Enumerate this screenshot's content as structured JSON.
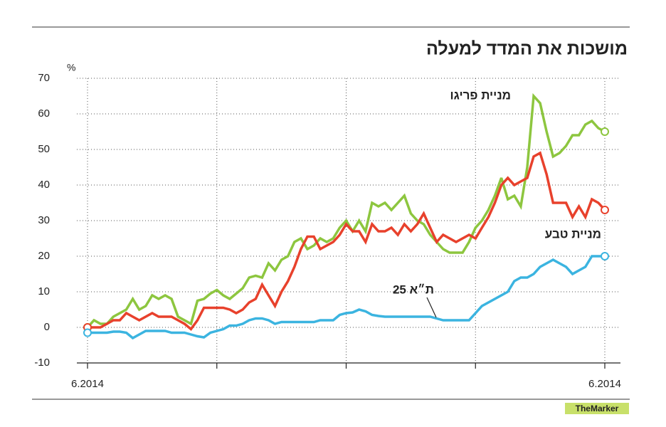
{
  "chart_data": {
    "type": "line",
    "title": "מושכות את המדד למעלה",
    "y_unit": "%",
    "logo": "TheMarker",
    "categories": [
      "6.2014",
      null,
      null,
      null,
      null,
      null,
      null,
      null,
      null,
      null,
      null,
      null,
      null,
      null,
      null,
      null,
      null,
      null,
      null,
      null,
      null,
      null,
      null,
      null,
      null,
      null,
      null,
      null,
      null,
      null,
      null,
      null,
      null,
      null,
      null,
      null,
      null,
      null,
      null,
      null,
      null,
      null,
      null,
      null,
      null,
      null,
      null,
      null,
      null,
      null,
      null,
      null,
      null,
      null,
      null,
      null,
      null,
      null,
      null,
      null,
      null,
      null,
      null,
      null,
      null,
      null,
      null,
      null,
      null,
      null,
      null,
      null,
      null,
      null,
      null,
      null,
      null,
      null,
      null,
      null,
      "6.2014"
    ],
    "series": [
      {
        "name": "מניית פריגו",
        "color": "#8dc63f",
        "values": [
          0,
          2,
          1,
          1,
          3,
          4,
          5,
          8,
          5,
          6,
          9,
          8,
          9,
          8,
          3,
          2,
          1,
          7.5,
          8,
          9.5,
          10.5,
          9,
          8,
          9.5,
          11,
          14,
          14.5,
          14,
          18,
          16,
          19,
          20,
          24,
          25,
          22,
          23,
          25,
          24,
          25,
          28,
          30,
          27,
          30,
          27,
          35,
          34,
          35,
          33,
          35,
          37,
          32,
          30,
          29,
          26,
          24,
          22,
          21,
          21,
          21,
          24,
          28,
          30,
          33,
          37,
          42,
          36,
          37,
          34,
          45,
          65,
          63,
          55,
          48,
          49,
          51,
          54,
          54,
          57,
          58,
          56,
          55
        ]
      },
      {
        "name": "מניית טבע",
        "color": "#e8412c",
        "values": [
          0,
          0,
          0,
          1,
          2,
          2,
          4,
          3,
          2,
          3,
          4,
          3,
          3,
          3,
          2,
          1,
          -0.5,
          2,
          5.5,
          5.5,
          5.5,
          5.5,
          5,
          4,
          5,
          7,
          8,
          12,
          9,
          6,
          10,
          13,
          17,
          22,
          25.5,
          25.5,
          22,
          23,
          24,
          26,
          29,
          27,
          27,
          24,
          29,
          27,
          27,
          28,
          26,
          29,
          27,
          29,
          32,
          28,
          24,
          26,
          25,
          24,
          25,
          26,
          25,
          28,
          31,
          35,
          40,
          42,
          40,
          41,
          42,
          48,
          49,
          43,
          35,
          35,
          35,
          31,
          34,
          31,
          36,
          35,
          33
        ]
      },
      {
        "name": "ת״א 25",
        "color": "#3bb4e0",
        "values": [
          -1.5,
          -1.5,
          -1.5,
          -1.5,
          -1.2,
          -1.2,
          -1.5,
          -3,
          -2,
          -1,
          -1,
          -1,
          -1,
          -1.5,
          -1.5,
          -1.5,
          -2,
          -2.5,
          -2.8,
          -1.5,
          -1,
          -0.5,
          0.5,
          0.5,
          1,
          2,
          2.5,
          2.5,
          2,
          1,
          1.5,
          1.5,
          1.5,
          1.5,
          1.5,
          1.5,
          2,
          2,
          2,
          3.5,
          4,
          4.2,
          5,
          4.5,
          3.5,
          3.2,
          3,
          3,
          3,
          3,
          3,
          3,
          3,
          3,
          2.5,
          2,
          2,
          2,
          2,
          2,
          4,
          6,
          7,
          8,
          9,
          10,
          13,
          14,
          14,
          15,
          17,
          18,
          19,
          18,
          17,
          15,
          16,
          17,
          20,
          20,
          20
        ]
      }
    ],
    "ylim": [
      -10,
      70
    ],
    "yticks": [
      -10,
      0,
      10,
      20,
      30,
      40,
      50,
      60,
      70
    ],
    "grid": true
  }
}
